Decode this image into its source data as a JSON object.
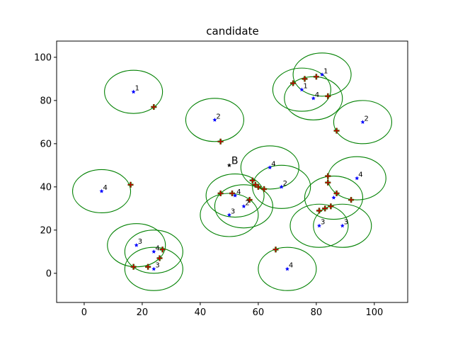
{
  "chart_data": {
    "type": "scatter",
    "title": "candidate",
    "xlabel": "",
    "ylabel": "",
    "xlim": [
      -9.5,
      111.5
    ],
    "ylim": [
      -13.5,
      107.5
    ],
    "xticks": [
      0,
      20,
      40,
      60,
      80,
      100
    ],
    "yticks": [
      0,
      20,
      40,
      60,
      80,
      100
    ],
    "grid": false,
    "legend": "none",
    "circle_radius": 10,
    "colors": {
      "points": "#0000ff",
      "circles": "#008000",
      "plus_markers": "#cc0000",
      "plus_markers_outline": "#008000",
      "special_point": "#000000"
    },
    "series": [
      {
        "points": [
          {
            "x": 17,
            "y": 84,
            "label": "1"
          },
          {
            "x": 82,
            "y": 92,
            "label": "1"
          },
          {
            "x": 75,
            "y": 85,
            "label": "1"
          },
          {
            "x": 79,
            "y": 81,
            "label": "4"
          },
          {
            "x": 45,
            "y": 71,
            "label": "2"
          },
          {
            "x": 96,
            "y": 70,
            "label": "2"
          },
          {
            "x": 6,
            "y": 38,
            "label": "4"
          },
          {
            "x": 64,
            "y": 49,
            "label": "4"
          },
          {
            "x": 68,
            "y": 40,
            "label": "2"
          },
          {
            "x": 94,
            "y": 44,
            "label": "4"
          },
          {
            "x": 52,
            "y": 36,
            "label": "4"
          },
          {
            "x": 55,
            "y": 31,
            "label": "2"
          },
          {
            "x": 50,
            "y": 27,
            "label": "3"
          },
          {
            "x": 86,
            "y": 35,
            "label": ""
          },
          {
            "x": 81,
            "y": 22,
            "label": "3"
          },
          {
            "x": 89,
            "y": 22,
            "label": "3"
          },
          {
            "x": 18,
            "y": 13,
            "label": "3"
          },
          {
            "x": 24,
            "y": 10,
            "label": "4"
          },
          {
            "x": 24,
            "y": 2,
            "label": "3"
          },
          {
            "x": 70,
            "y": 2,
            "label": "4"
          }
        ]
      }
    ],
    "special_point": {
      "x": 50,
      "y": 50,
      "label": "B"
    },
    "plus_markers": [
      {
        "x": 24,
        "y": 77
      },
      {
        "x": 47,
        "y": 61
      },
      {
        "x": 16,
        "y": 41
      },
      {
        "x": 87,
        "y": 66
      },
      {
        "x": 72,
        "y": 88
      },
      {
        "x": 76,
        "y": 90
      },
      {
        "x": 80,
        "y": 91
      },
      {
        "x": 84,
        "y": 82
      },
      {
        "x": 58,
        "y": 43
      },
      {
        "x": 59,
        "y": 41
      },
      {
        "x": 60,
        "y": 40
      },
      {
        "x": 62,
        "y": 39
      },
      {
        "x": 47,
        "y": 37
      },
      {
        "x": 51,
        "y": 37
      },
      {
        "x": 57,
        "y": 34
      },
      {
        "x": 84,
        "y": 45
      },
      {
        "x": 84,
        "y": 42
      },
      {
        "x": 87,
        "y": 37
      },
      {
        "x": 92,
        "y": 34
      },
      {
        "x": 85,
        "y": 31
      },
      {
        "x": 83,
        "y": 30
      },
      {
        "x": 81,
        "y": 29
      },
      {
        "x": 27,
        "y": 11
      },
      {
        "x": 26,
        "y": 7
      },
      {
        "x": 17,
        "y": 3
      },
      {
        "x": 22,
        "y": 3
      },
      {
        "x": 66,
        "y": 11
      }
    ]
  }
}
